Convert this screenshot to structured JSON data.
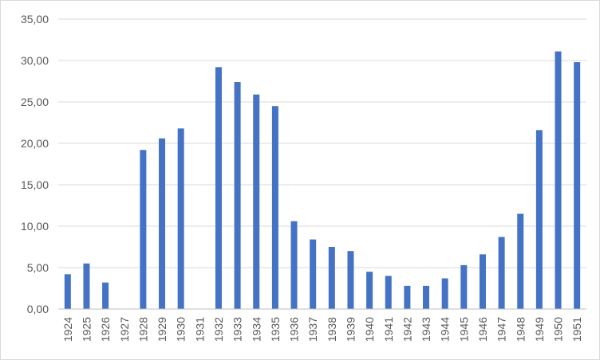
{
  "chart_data": {
    "type": "bar",
    "title": "",
    "xlabel": "",
    "ylabel": "",
    "categories": [
      "1924",
      "1925",
      "1926",
      "1927",
      "1928",
      "1929",
      "1930",
      "1931",
      "1932",
      "1933",
      "1934",
      "1935",
      "1936",
      "1937",
      "1938",
      "1939",
      "1940",
      "1941",
      "1942",
      "1943",
      "1944",
      "1945",
      "1946",
      "1947",
      "1948",
      "1949",
      "1950",
      "1951"
    ],
    "values": [
      4.2,
      5.5,
      3.2,
      0,
      19.2,
      20.6,
      21.8,
      0,
      29.2,
      27.4,
      25.9,
      24.5,
      10.6,
      8.4,
      7.5,
      7.0,
      4.5,
      4.0,
      2.8,
      2.8,
      3.7,
      5.3,
      6.6,
      8.7,
      11.5,
      21.6,
      31.1,
      29.8
    ],
    "ylim": [
      0,
      35
    ],
    "yticks": [
      0,
      5,
      10,
      15,
      20,
      25,
      30,
      35
    ],
    "ytick_labels": [
      "0,00",
      "5,00",
      "10,00",
      "15,00",
      "20,00",
      "25,00",
      "30,00",
      "35,00"
    ],
    "grid": true,
    "legend": "none",
    "bar_color": "#4472c4"
  }
}
